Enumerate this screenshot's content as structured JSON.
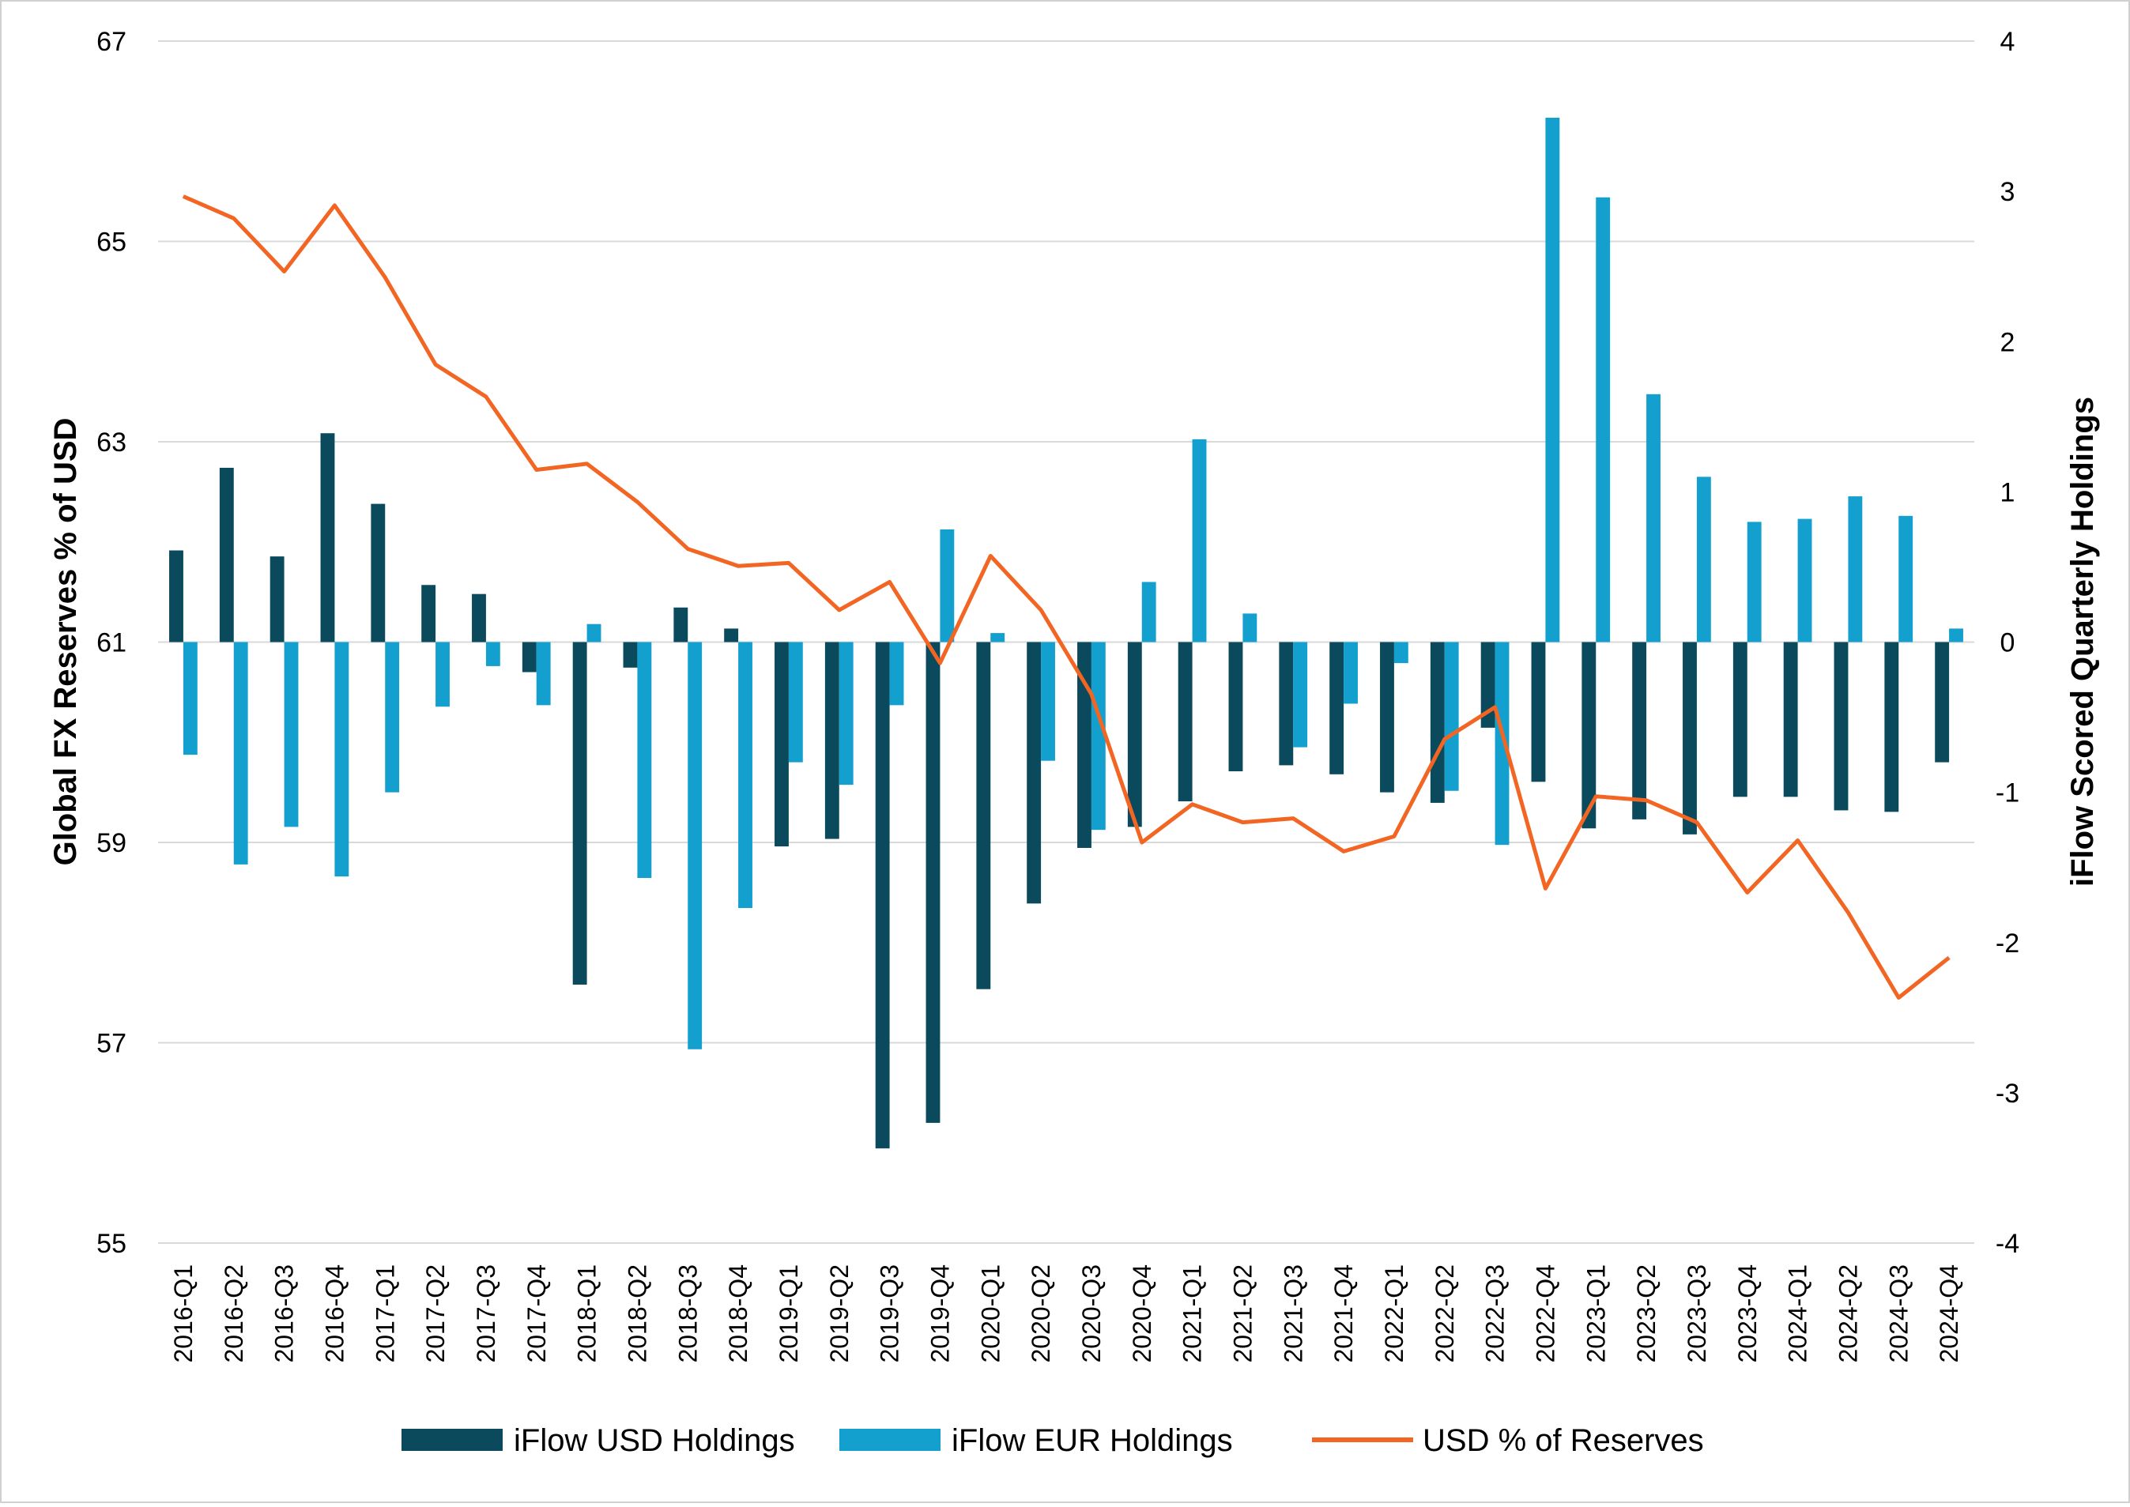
{
  "colors": {
    "usd_holdings": "#0b4a5c",
    "eur_holdings": "#14a0cf",
    "usd_reserves": "#f26522",
    "grid": "#d9d9d9"
  },
  "chart_data": {
    "type": "bar",
    "categories": [
      "2016-Q1",
      "2016-Q2",
      "2016-Q3",
      "2016-Q4",
      "2017-Q1",
      "2017-Q2",
      "2017-Q3",
      "2017-Q4",
      "2018-Q1",
      "2018-Q2",
      "2018-Q3",
      "2018-Q4",
      "2019-Q1",
      "2019-Q2",
      "2019-Q3",
      "2019-Q4",
      "2020-Q1",
      "2020-Q2",
      "2020-Q3",
      "2020-Q4",
      "2021-Q1",
      "2021-Q2",
      "2021-Q3",
      "2021-Q4",
      "2022-Q1",
      "2022-Q2",
      "2022-Q3",
      "2022-Q4",
      "2023-Q1",
      "2023-Q2",
      "2023-Q3",
      "2023-Q4",
      "2024-Q1",
      "2024-Q2",
      "2024-Q3",
      "2024-Q4"
    ],
    "series": [
      {
        "name": "iFlow USD Holdings",
        "type": "bar",
        "axis": "right",
        "values": [
          0.61,
          1.16,
          0.57,
          1.39,
          0.92,
          0.38,
          0.32,
          -0.2,
          -2.28,
          -0.17,
          0.23,
          0.09,
          -1.36,
          -1.31,
          -3.37,
          -3.2,
          -2.31,
          -1.74,
          -1.37,
          -1.23,
          -1.06,
          -0.86,
          -0.82,
          -0.88,
          -1.0,
          -1.07,
          -0.57,
          -0.93,
          -1.24,
          -1.18,
          -1.28,
          -1.03,
          -1.03,
          -1.12,
          -1.13,
          -0.8
        ]
      },
      {
        "name": "iFlow EUR Holdings",
        "type": "bar",
        "axis": "right",
        "values": [
          -0.75,
          -1.48,
          -1.23,
          -1.56,
          -1.0,
          -0.43,
          -0.16,
          -0.42,
          0.12,
          -1.57,
          -2.71,
          -1.77,
          -0.8,
          -0.95,
          -0.42,
          0.75,
          0.06,
          -0.79,
          -1.25,
          0.4,
          1.35,
          0.19,
          -0.7,
          -0.41,
          -0.14,
          -0.99,
          -1.35,
          3.49,
          2.96,
          1.65,
          1.1,
          0.8,
          0.82,
          0.97,
          0.84,
          0.09
        ]
      },
      {
        "name": "USD % of Reserves",
        "type": "line",
        "axis": "left",
        "values": [
          65.45,
          65.23,
          64.7,
          65.36,
          64.64,
          63.77,
          63.45,
          62.72,
          62.78,
          62.4,
          61.93,
          61.76,
          61.79,
          61.32,
          61.6,
          60.79,
          61.86,
          61.32,
          60.48,
          59.0,
          59.38,
          59.2,
          59.24,
          58.91,
          59.06,
          60.03,
          60.35,
          58.54,
          59.46,
          59.42,
          59.2,
          58.5,
          59.02,
          58.3,
          57.45,
          57.85
        ]
      }
    ],
    "yleft_label": "Global FX Reserves % of USD",
    "yleft_ticks": [
      "55",
      "57",
      "59",
      "61",
      "63",
      "65",
      "67"
    ],
    "yleft_lim": [
      55,
      67
    ],
    "yright_label": "iFlow Scored Quarterly Holdings",
    "yright_ticks": [
      "-4",
      "-3",
      "-2",
      "-1",
      "0",
      "1",
      "2",
      "3",
      "4"
    ],
    "yright_lim": [
      -4,
      4
    ],
    "grid": true,
    "legend_position": "bottom"
  }
}
